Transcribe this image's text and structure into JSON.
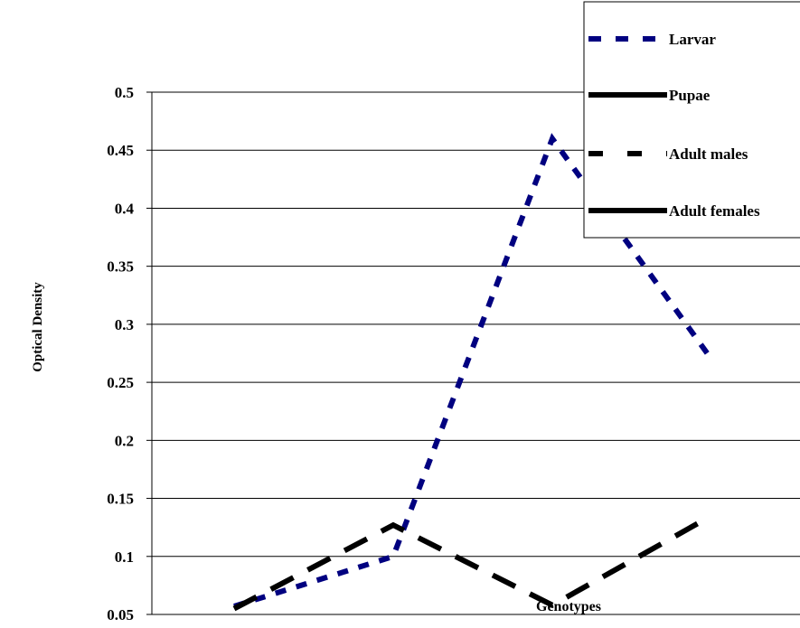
{
  "chart_data": {
    "type": "line",
    "title": "",
    "xlabel": "Genotypes",
    "ylabel": "Optical Density",
    "ylim": [
      0.05,
      0.5
    ],
    "yticks": [
      "0.05",
      "0.1",
      "0.15",
      "0.2",
      "0.25",
      "0.3",
      "0.35",
      "0.4",
      "0.45",
      "0.5"
    ],
    "x_count": 5,
    "grid": true,
    "legend_position": "top-right",
    "series": [
      {
        "name": "Larvar",
        "values": [
          0.057,
          0.1,
          0.46,
          0.27
        ],
        "color": "#000080",
        "style": "dotted"
      },
      {
        "name": "Pupae",
        "values": [],
        "color": "#000000",
        "style": "solid"
      },
      {
        "name": "Adult males",
        "values": [
          0.055,
          0.127,
          0.058,
          0.135
        ],
        "color": "#000000",
        "style": "dashed"
      },
      {
        "name": "Adult females",
        "values": [],
        "color": "#000000",
        "style": "solid"
      }
    ]
  }
}
